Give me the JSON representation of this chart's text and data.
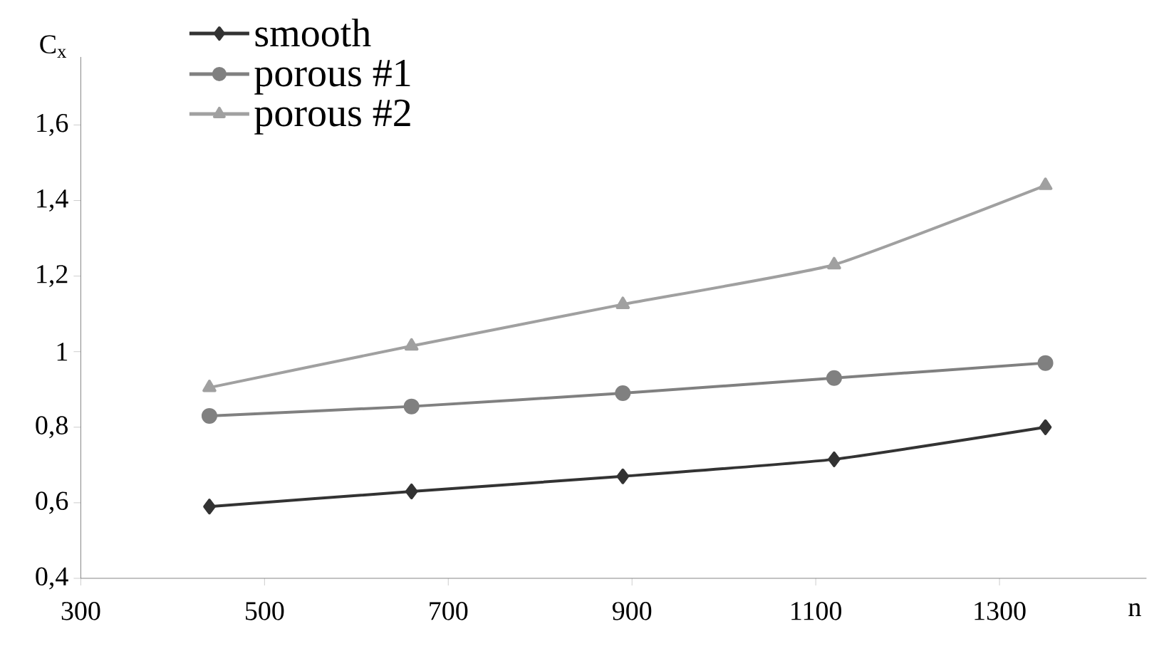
{
  "chart_data": {
    "type": "line",
    "xlabel": "n",
    "ylabel": "C$_{x}$",
    "x": [
      440,
      660,
      890,
      1120,
      1350
    ],
    "series": [
      {
        "name": "smooth",
        "color": "#333333",
        "marker": "diamond",
        "values": [
          0.59,
          0.63,
          0.67,
          0.715,
          0.8
        ]
      },
      {
        "name": "porous #1",
        "color": "#808080",
        "marker": "circle",
        "values": [
          0.83,
          0.855,
          0.89,
          0.93,
          0.97
        ]
      },
      {
        "name": "porous #2",
        "color": "#a0a0a0",
        "marker": "triangle",
        "values": [
          0.905,
          1.015,
          1.125,
          1.23,
          1.44
        ]
      }
    ],
    "xlim": [
      300,
      1460
    ],
    "ylim": [
      0.4,
      1.78
    ],
    "xticks": [
      300,
      500,
      700,
      900,
      1100,
      1300
    ],
    "yticks": [
      {
        "value": 0.4,
        "label": "0,4"
      },
      {
        "value": 0.6,
        "label": "0,6"
      },
      {
        "value": 0.8,
        "label": "0,8"
      },
      1,
      {
        "value": 1.2,
        "label": "1,2"
      },
      {
        "value": 1.4,
        "label": "1,4"
      },
      {
        "value": 1.6,
        "label": "1,6"
      }
    ],
    "grid": false,
    "legend": "top left",
    "line_style": "solid"
  }
}
